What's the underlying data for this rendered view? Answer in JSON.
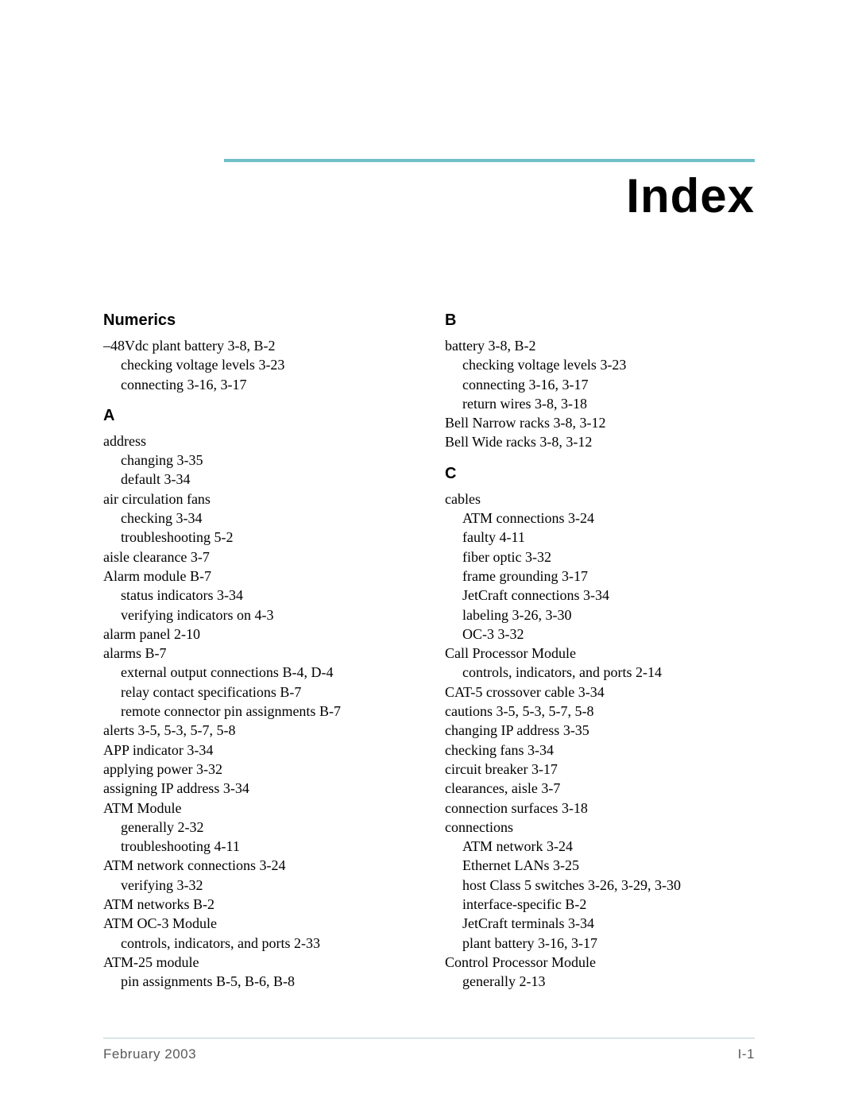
{
  "colors": {
    "accent_rule": "#6fbfc7",
    "footer_rule": "#b8cfd1",
    "text": "#000000",
    "footer_text": "#5a5a5a",
    "background": "#ffffff"
  },
  "typography": {
    "title_fontsize": 60,
    "section_head_fontsize": 20,
    "body_fontsize": 18,
    "footer_fontsize": 17,
    "title_font": "Futura/CenturyGothic",
    "body_font": "Palatino/Georgia"
  },
  "title": "Index",
  "footer": {
    "left": "February 2003",
    "right": "I-1"
  },
  "left_column": {
    "sections": [
      {
        "head": "Numerics",
        "entries": [
          {
            "level": 0,
            "text": "–48Vdc plant battery",
            "pages": "3-8, B-2"
          },
          {
            "level": 1,
            "text": "checking voltage levels",
            "pages": "3-23"
          },
          {
            "level": 1,
            "text": "connecting",
            "pages": "3-16, 3-17"
          }
        ]
      },
      {
        "head": "A",
        "entries": [
          {
            "level": 0,
            "text": "address",
            "pages": ""
          },
          {
            "level": 1,
            "text": "changing",
            "pages": "3-35"
          },
          {
            "level": 1,
            "text": "default",
            "pages": "3-34"
          },
          {
            "level": 0,
            "text": "air circulation fans",
            "pages": ""
          },
          {
            "level": 1,
            "text": "checking",
            "pages": "3-34"
          },
          {
            "level": 1,
            "text": "troubleshooting",
            "pages": "5-2"
          },
          {
            "level": 0,
            "text": "aisle clearance",
            "pages": "3-7"
          },
          {
            "level": 0,
            "text": "Alarm module",
            "pages": "B-7"
          },
          {
            "level": 1,
            "text": "status indicators",
            "pages": "3-34"
          },
          {
            "level": 1,
            "text": "verifying indicators on",
            "pages": "4-3"
          },
          {
            "level": 0,
            "text": "alarm panel",
            "pages": "2-10"
          },
          {
            "level": 0,
            "text": "alarms",
            "pages": "B-7"
          },
          {
            "level": 1,
            "text": "external output connections",
            "pages": "B-4, D-4"
          },
          {
            "level": 1,
            "text": "relay contact specifications",
            "pages": "B-7"
          },
          {
            "level": 1,
            "text": "remote connector pin assignments",
            "pages": "B-7"
          },
          {
            "level": 0,
            "text": "alerts",
            "pages": "3-5, 5-3, 5-7, 5-8"
          },
          {
            "level": 0,
            "text": "APP indicator",
            "pages": "3-34"
          },
          {
            "level": 0,
            "text": "applying power",
            "pages": "3-32"
          },
          {
            "level": 0,
            "text": "assigning IP address",
            "pages": "3-34"
          },
          {
            "level": 0,
            "text": "ATM Module",
            "pages": ""
          },
          {
            "level": 1,
            "text": "generally",
            "pages": "2-32"
          },
          {
            "level": 1,
            "text": "troubleshooting",
            "pages": "4-11"
          },
          {
            "level": 0,
            "text": "ATM network connections",
            "pages": "3-24"
          },
          {
            "level": 1,
            "text": "verifying",
            "pages": "3-32"
          },
          {
            "level": 0,
            "text": "ATM networks",
            "pages": "B-2"
          },
          {
            "level": 0,
            "text": "ATM OC-3 Module",
            "pages": ""
          },
          {
            "level": 1,
            "text": "controls, indicators, and ports",
            "pages": "2-33"
          },
          {
            "level": 0,
            "text": "ATM-25 module",
            "pages": ""
          },
          {
            "level": 1,
            "text": "pin assignments",
            "pages": "B-5, B-6, B-8"
          }
        ]
      }
    ]
  },
  "right_column": {
    "sections": [
      {
        "head": "B",
        "entries": [
          {
            "level": 0,
            "text": "battery",
            "pages": "3-8, B-2"
          },
          {
            "level": 1,
            "text": "checking voltage levels",
            "pages": "3-23"
          },
          {
            "level": 1,
            "text": "connecting",
            "pages": "3-16, 3-17"
          },
          {
            "level": 1,
            "text": "return wires",
            "pages": "3-8, 3-18"
          },
          {
            "level": 0,
            "text": "Bell Narrow racks",
            "pages": "3-8, 3-12"
          },
          {
            "level": 0,
            "text": "Bell Wide racks",
            "pages": "3-8, 3-12"
          }
        ]
      },
      {
        "head": "C",
        "entries": [
          {
            "level": 0,
            "text": "cables",
            "pages": ""
          },
          {
            "level": 1,
            "text": "ATM connections",
            "pages": "3-24"
          },
          {
            "level": 1,
            "text": "faulty",
            "pages": "4-11"
          },
          {
            "level": 1,
            "text": "fiber optic",
            "pages": "3-32"
          },
          {
            "level": 1,
            "text": "frame grounding",
            "pages": "3-17"
          },
          {
            "level": 1,
            "text": "JetCraft connections",
            "pages": "3-34"
          },
          {
            "level": 1,
            "text": "labeling",
            "pages": "3-26, 3-30"
          },
          {
            "level": 1,
            "text": "OC-3",
            "pages": "3-32"
          },
          {
            "level": 0,
            "text": "Call Processor Module",
            "pages": ""
          },
          {
            "level": 1,
            "text": "controls, indicators, and ports",
            "pages": "2-14"
          },
          {
            "level": 0,
            "text": "CAT-5 crossover cable",
            "pages": "3-34"
          },
          {
            "level": 0,
            "text": "cautions",
            "pages": "3-5, 5-3, 5-7, 5-8"
          },
          {
            "level": 0,
            "text": "changing IP address",
            "pages": "3-35"
          },
          {
            "level": 0,
            "text": "checking fans",
            "pages": "3-34"
          },
          {
            "level": 0,
            "text": "circuit breaker",
            "pages": "3-17"
          },
          {
            "level": 0,
            "text": "clearances, aisle",
            "pages": "3-7"
          },
          {
            "level": 0,
            "text": "connection surfaces",
            "pages": "3-18"
          },
          {
            "level": 0,
            "text": "connections",
            "pages": ""
          },
          {
            "level": 1,
            "text": "ATM network",
            "pages": "3-24"
          },
          {
            "level": 1,
            "text": "Ethernet LANs",
            "pages": "3-25"
          },
          {
            "level": 1,
            "text": "host Class 5 switches",
            "pages": "3-26, 3-29, 3-30"
          },
          {
            "level": 1,
            "text": "interface-specific",
            "pages": "B-2"
          },
          {
            "level": 1,
            "text": "JetCraft terminals",
            "pages": "3-34"
          },
          {
            "level": 1,
            "text": "plant battery",
            "pages": "3-16, 3-17"
          },
          {
            "level": 0,
            "text": "Control Processor Module",
            "pages": ""
          },
          {
            "level": 1,
            "text": "generally",
            "pages": "2-13"
          }
        ]
      }
    ]
  }
}
